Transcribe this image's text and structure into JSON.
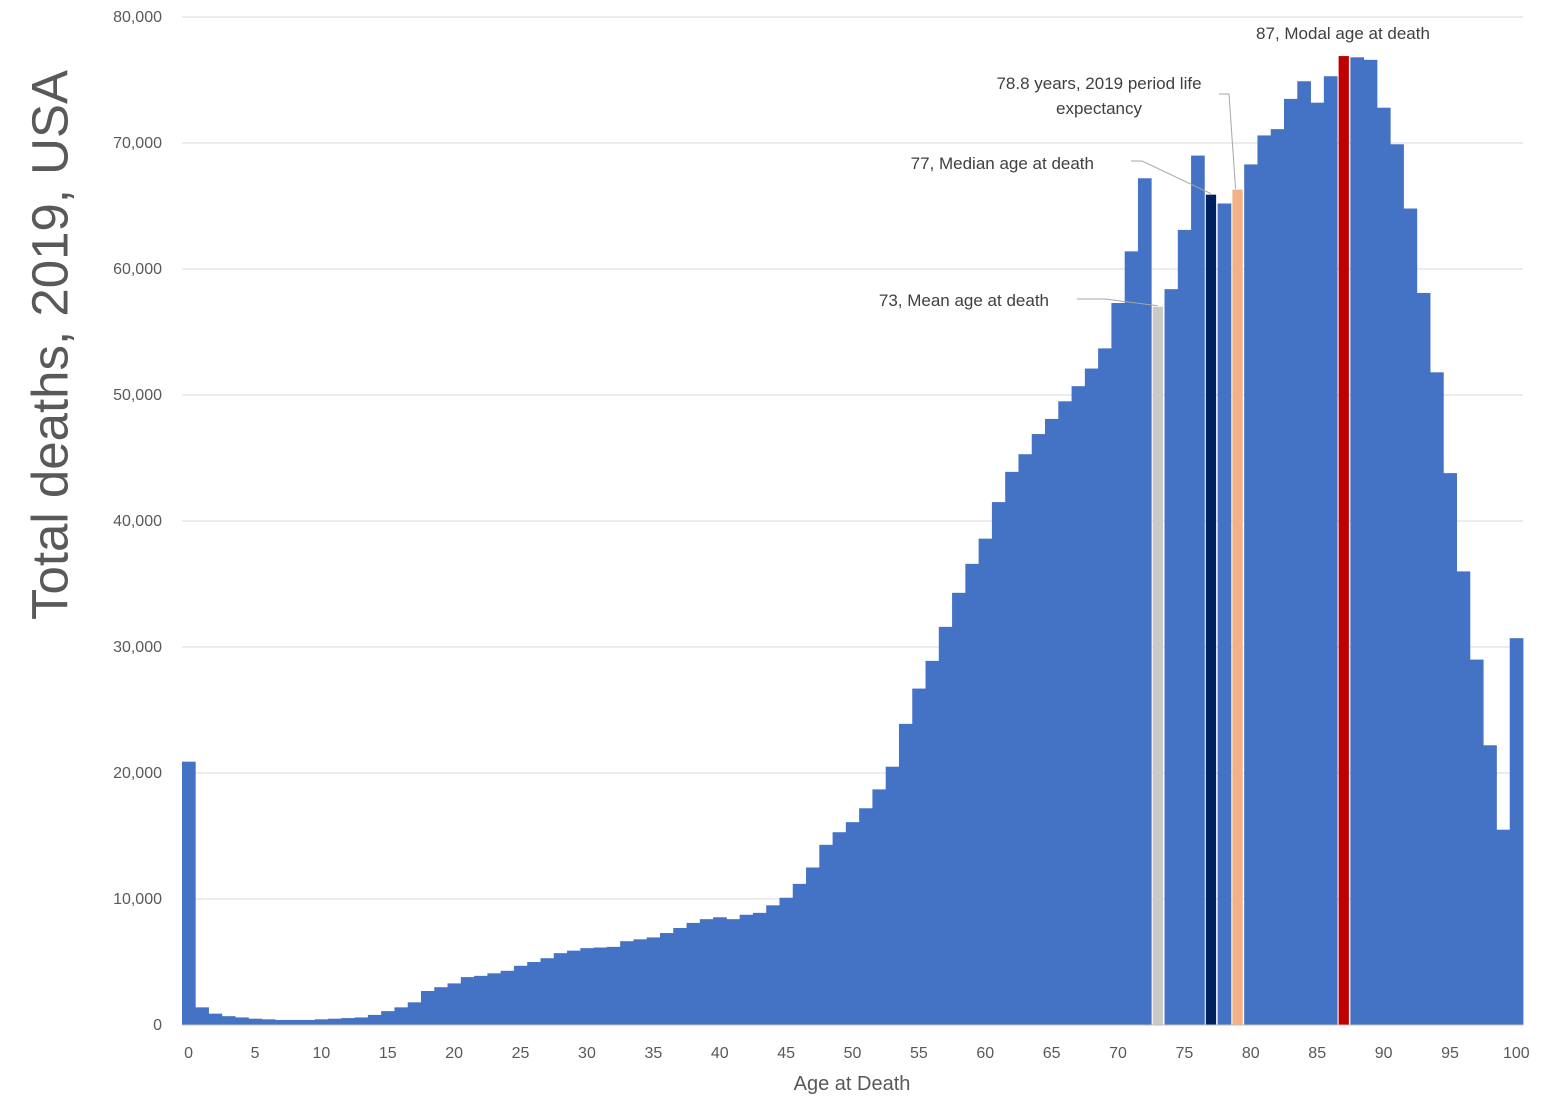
{
  "chart_data": {
    "type": "bar",
    "ylabel": "Total deaths, 2019, USA",
    "xlabel": "Age at Death",
    "ylim": [
      0,
      80000
    ],
    "y_ticks": [
      "0",
      "10,000",
      "20,000",
      "30,000",
      "40,000",
      "50,000",
      "60,000",
      "70,000",
      "80,000"
    ],
    "x_ticks": [
      "0",
      "5",
      "10",
      "15",
      "20",
      "25",
      "30",
      "35",
      "40",
      "45",
      "50",
      "55",
      "60",
      "65",
      "70",
      "75",
      "80",
      "85",
      "90",
      "95",
      "100"
    ],
    "grid": true,
    "categories": [
      0,
      1,
      2,
      3,
      4,
      5,
      6,
      7,
      8,
      9,
      10,
      11,
      12,
      13,
      14,
      15,
      16,
      17,
      18,
      19,
      20,
      21,
      22,
      23,
      24,
      25,
      26,
      27,
      28,
      29,
      30,
      31,
      32,
      33,
      34,
      35,
      36,
      37,
      38,
      39,
      40,
      41,
      42,
      43,
      44,
      45,
      46,
      47,
      48,
      49,
      50,
      51,
      52,
      53,
      54,
      55,
      56,
      57,
      58,
      59,
      60,
      61,
      62,
      63,
      64,
      65,
      66,
      67,
      68,
      69,
      70,
      71,
      72,
      73,
      74,
      75,
      76,
      77,
      78,
      79,
      80,
      81,
      82,
      83,
      84,
      85,
      86,
      87,
      88,
      89,
      90,
      91,
      92,
      93,
      94,
      95,
      96,
      97,
      98,
      99,
      100
    ],
    "values": [
      20900,
      1400,
      900,
      700,
      600,
      500,
      450,
      400,
      400,
      400,
      450,
      500,
      550,
      600,
      800,
      1100,
      1400,
      1800,
      2700,
      3000,
      3300,
      3800,
      3900,
      4100,
      4300,
      4700,
      5000,
      5300,
      5700,
      5900,
      6100,
      6150,
      6200,
      6650,
      6800,
      6950,
      7300,
      7700,
      8100,
      8400,
      8550,
      8400,
      8750,
      8900,
      9500,
      10100,
      11200,
      12500,
      14300,
      15300,
      16100,
      17200,
      18700,
      20500,
      23900,
      26700,
      28900,
      31600,
      34300,
      36600,
      38600,
      41500,
      43900,
      45300,
      46900,
      48100,
      49500,
      50700,
      52100,
      53700,
      57300,
      61400,
      67200,
      57000,
      58400,
      63100,
      69000,
      65900,
      65200,
      66300,
      68300,
      70600,
      71100,
      73500,
      74900,
      73200,
      75300,
      76900,
      76800,
      76600,
      72800,
      69900,
      64800,
      58100,
      51800,
      43800,
      36000,
      29000,
      22200,
      15500,
      30700
    ],
    "highlights": [
      {
        "age": 73,
        "color": "#C9C9C9",
        "label": "73, Mean age at death"
      },
      {
        "age": 77,
        "color": "#002060",
        "label": "77, Median age at death"
      },
      {
        "age": 79,
        "color": "#F4B183",
        "label_line1": "78.8 years, 2019 period life",
        "label_line2": "expectancy"
      },
      {
        "age": 87,
        "color": "#C00000",
        "label": "87, Modal age at death"
      }
    ],
    "bar_color": "#4472C4",
    "grid_color": "#D9D9D9"
  }
}
